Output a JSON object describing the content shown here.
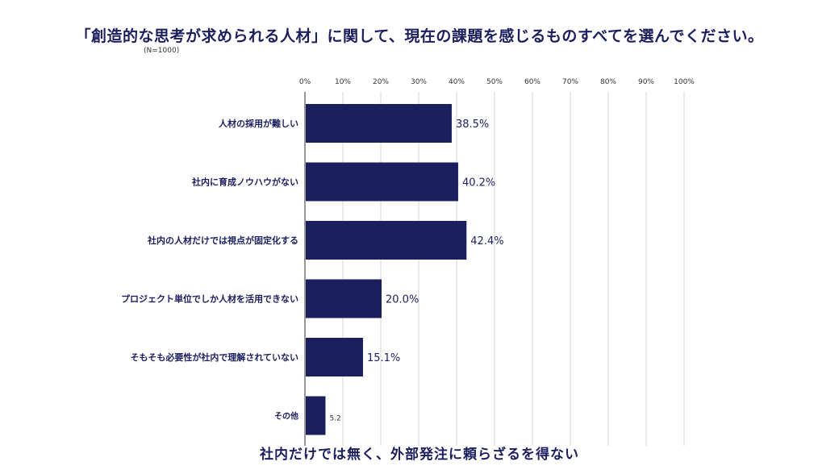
{
  "title": "「創造的な思考が求められる人材」に関して、現在の課題を感じるものすべてを選んでください。",
  "subtitle": "(N=1000)",
  "cutoff_text": "社内だけでは無く、外部発注に頼らざるを得ない",
  "colors": {
    "bar": "#1b1f5e",
    "grid": "#d6d6d6",
    "axis": "#555555",
    "text": "#1b1f5e"
  },
  "chart_data": {
    "type": "bar",
    "orientation": "horizontal",
    "categories": [
      "人材の採用が難しい",
      "社内に育成ノウハウがない",
      "社内の人材だけでは視点が固定化する",
      "プロジェクト単位でしか人材を活用できない",
      "そもそも必要性が社内で理解されていない",
      "その他"
    ],
    "values": [
      38.5,
      40.2,
      42.4,
      20.0,
      15.1,
      5.2
    ],
    "value_labels": [
      "38.5%",
      "40.2%",
      "42.4%",
      "20.0%",
      "15.1%",
      "5.2"
    ],
    "xlim": [
      0,
      100
    ],
    "ticks": [
      "0%",
      "10%",
      "20%",
      "30%",
      "40%",
      "50%",
      "60%",
      "70%",
      "80%",
      "90%",
      "100%"
    ],
    "grid": true
  }
}
